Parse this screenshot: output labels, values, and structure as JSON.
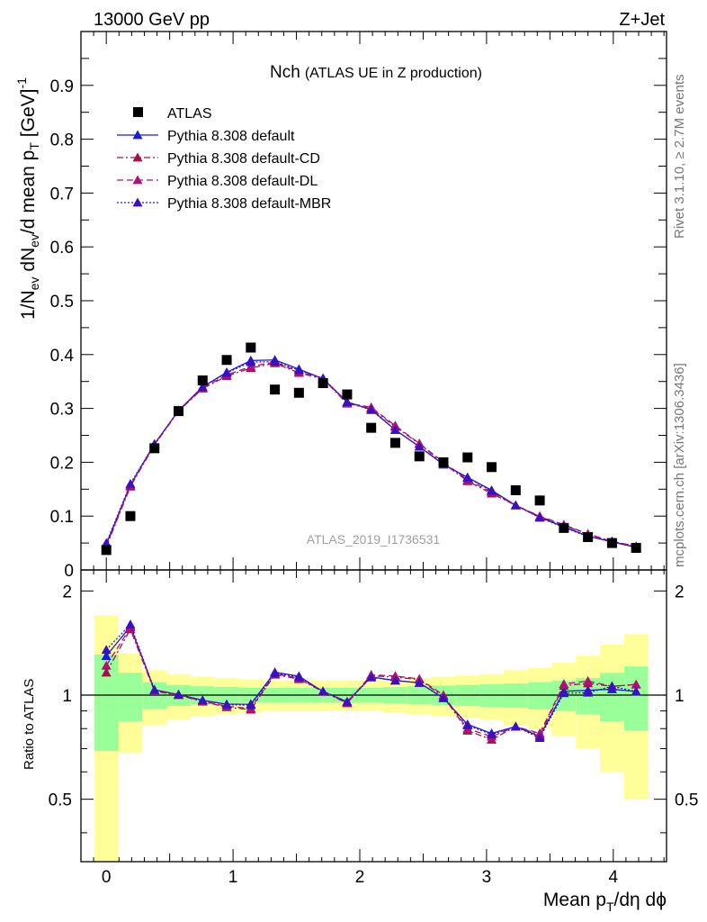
{
  "chart_data": {
    "type": "scatter",
    "header": {
      "left": "13000 GeV pp",
      "right": "Z+Jet"
    },
    "title": {
      "main": "Nch",
      "sub": "(ATLAS UE in Z production)"
    },
    "ylabel": {
      "main": "1/N",
      "sub1": "ev",
      "mid": " dN",
      "sub2": "ev",
      "mid2": "/d mean p",
      "sub3": "T",
      "mid3": " [GeV]",
      "sup": "-1"
    },
    "xlabel": {
      "main": "Mean p",
      "sub": "T",
      "rest": "/dη dϕ"
    },
    "ratio_ylabel": "Ratio to ATLAS",
    "analysis_label": "ATLAS_2019_I1736531",
    "side_label_top": "Rivet 3.1.10, ≥ 2.7M events",
    "side_label_bottom": "mcplots.cern.ch [arXiv:1306.3436]",
    "xlim": [
      -0.2,
      4.42
    ],
    "ylim_main": [
      0,
      1.0
    ],
    "ylim_ratio": [
      0.33,
      2.3
    ],
    "x_ticks": [
      "0",
      "1",
      "2",
      "3",
      "4"
    ],
    "main_y_ticks": [
      "0",
      "0.1",
      "0.2",
      "0.3",
      "0.4",
      "0.5",
      "0.6",
      "0.7",
      "0.8",
      "0.9"
    ],
    "ratio_y_ticks": [
      "0.5",
      "1",
      "2"
    ],
    "colors": {
      "data": "#000000",
      "default": "#1a1adc",
      "cd": "#a4104a",
      "dl": "#b0107a",
      "mbr": "#3a10c0",
      "band_inner": "#99ff99",
      "band_outer": "#ffff99"
    },
    "x": [
      0.0,
      0.19,
      0.38,
      0.57,
      0.76,
      0.95,
      1.14,
      1.33,
      1.52,
      1.71,
      1.9,
      2.09,
      2.28,
      2.47,
      2.66,
      2.85,
      3.04,
      3.23,
      3.42,
      3.61,
      3.8,
      3.99,
      4.18
    ],
    "data": [
      0.037,
      0.1,
      0.226,
      0.295,
      0.352,
      0.39,
      0.413,
      0.335,
      0.329,
      0.347,
      0.326,
      0.264,
      0.236,
      0.211,
      0.2,
      0.209,
      0.191,
      0.148,
      0.129,
      0.078,
      0.061,
      0.05,
      0.041
    ],
    "series": [
      {
        "name": "Pythia 8.308 default",
        "style": "solid",
        "key": "default",
        "values": [
          0.048,
          0.158,
          0.234,
          0.296,
          0.34,
          0.367,
          0.389,
          0.39,
          0.373,
          0.355,
          0.312,
          0.298,
          0.26,
          0.229,
          0.196,
          0.172,
          0.148,
          0.12,
          0.098,
          0.08,
          0.063,
          0.052,
          0.042
        ]
      },
      {
        "name": "Pythia 8.308 default-CD",
        "style": "dashdot",
        "key": "cd",
        "values": [
          0.043,
          0.155,
          0.232,
          0.295,
          0.337,
          0.36,
          0.375,
          0.384,
          0.366,
          0.355,
          0.309,
          0.3,
          0.266,
          0.234,
          0.198,
          0.165,
          0.142,
          0.12,
          0.099,
          0.083,
          0.066,
          0.053,
          0.044
        ]
      },
      {
        "name": "Pythia 8.308 default-DL",
        "style": "dashed",
        "key": "dl",
        "values": [
          0.045,
          0.157,
          0.233,
          0.296,
          0.338,
          0.362,
          0.378,
          0.386,
          0.368,
          0.356,
          0.31,
          0.302,
          0.268,
          0.235,
          0.2,
          0.167,
          0.145,
          0.12,
          0.1,
          0.084,
          0.067,
          0.053,
          0.044
        ]
      },
      {
        "name": "Pythia 8.308 default-MBR",
        "style": "dotted",
        "key": "mbr",
        "values": [
          0.05,
          0.16,
          0.234,
          0.296,
          0.34,
          0.366,
          0.386,
          0.387,
          0.371,
          0.356,
          0.312,
          0.297,
          0.26,
          0.229,
          0.196,
          0.171,
          0.147,
          0.12,
          0.097,
          0.079,
          0.062,
          0.053,
          0.042
        ]
      }
    ],
    "band_inner_rel": [
      0.31,
      0.16,
      0.09,
      0.07,
      0.06,
      0.055,
      0.05,
      0.05,
      0.05,
      0.05,
      0.05,
      0.05,
      0.055,
      0.06,
      0.065,
      0.07,
      0.075,
      0.08,
      0.09,
      0.1,
      0.12,
      0.16,
      0.21
    ],
    "band_outer_rel": [
      0.7,
      0.32,
      0.18,
      0.15,
      0.13,
      0.12,
      0.11,
      0.1,
      0.1,
      0.1,
      0.1,
      0.1,
      0.11,
      0.12,
      0.13,
      0.14,
      0.15,
      0.18,
      0.2,
      0.24,
      0.3,
      0.4,
      0.5
    ]
  }
}
